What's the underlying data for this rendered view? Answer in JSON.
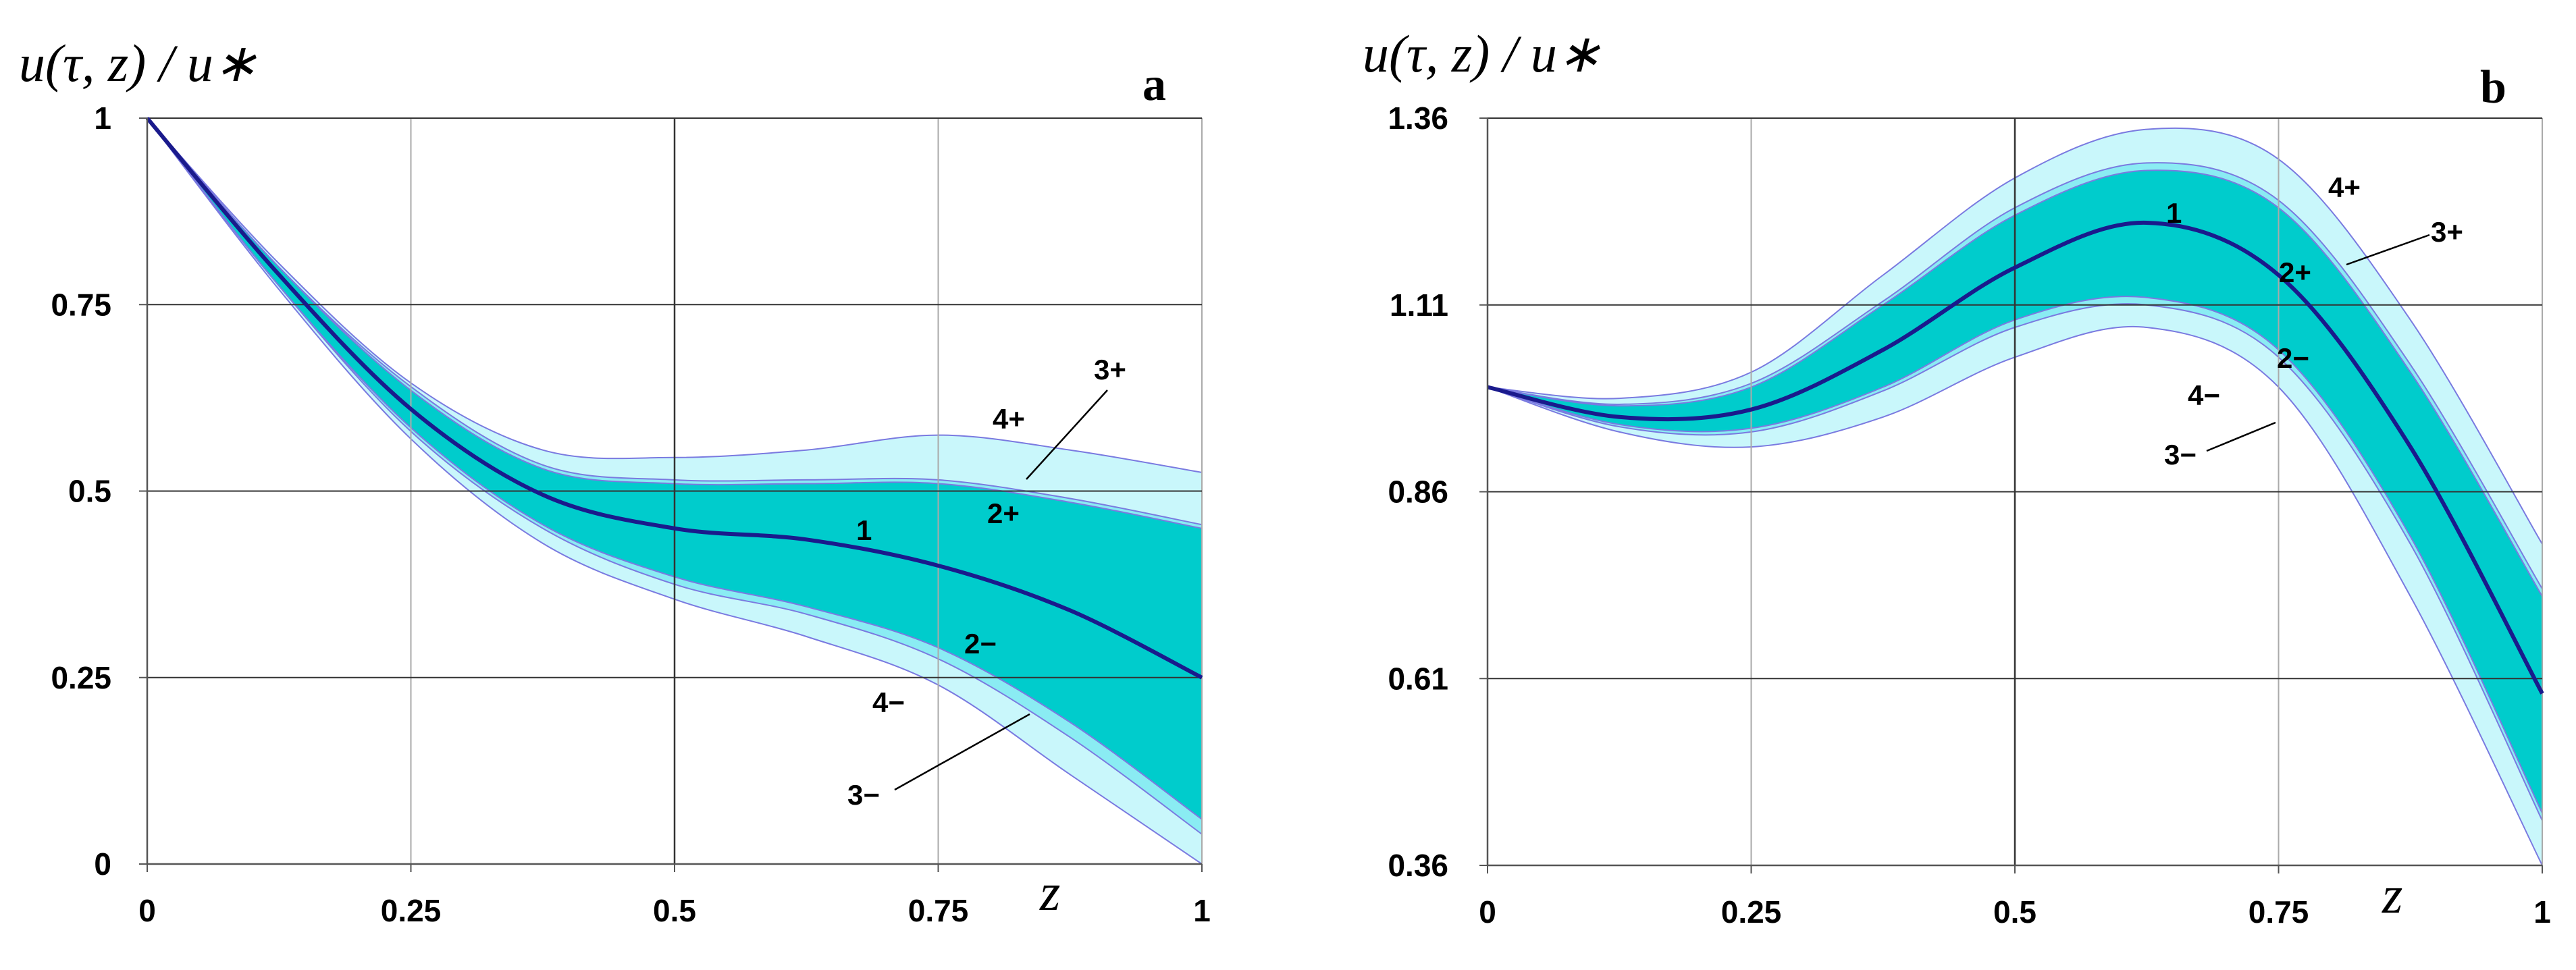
{
  "chart_data": [
    {
      "type": "area",
      "panel_label": "a",
      "ylabel": "u(τ, z) / u∗",
      "xlabel": "z",
      "xlim": [
        0,
        1
      ],
      "ylim": [
        0,
        1
      ],
      "x_ticks": [
        0,
        0.25,
        0.5,
        0.75,
        1
      ],
      "x_tick_labels": [
        "0",
        "0.25",
        "0.5",
        "0.75",
        "1"
      ],
      "y_ticks": [
        0,
        0.25,
        0.5,
        0.75,
        1
      ],
      "y_tick_labels": [
        "0",
        "0.25",
        "0.5",
        "0.75",
        "1"
      ],
      "grid": true,
      "colors": {
        "band4": "#c9f7fb",
        "band3": "#8aecf3",
        "band2": "#00cccc",
        "center": "#1a1a8c",
        "edge": "#7a7ae0"
      },
      "x": [
        0,
        0.125,
        0.25,
        0.375,
        0.5,
        0.625,
        0.75,
        0.875,
        1
      ],
      "series": [
        {
          "name": "1",
          "values": [
            1.0,
            0.79,
            0.61,
            0.495,
            0.45,
            0.435,
            0.4,
            0.34,
            0.25
          ]
        },
        {
          "name": "2+",
          "values": [
            1.0,
            0.8,
            0.635,
            0.53,
            0.51,
            0.51,
            0.51,
            0.485,
            0.45
          ]
        },
        {
          "name": "2−",
          "values": [
            1.0,
            0.775,
            0.585,
            0.455,
            0.385,
            0.345,
            0.29,
            0.19,
            0.06
          ]
        },
        {
          "name": "3+",
          "values": [
            1.0,
            0.8,
            0.64,
            0.535,
            0.515,
            0.515,
            0.515,
            0.49,
            0.455
          ]
        },
        {
          "name": "3−",
          "values": [
            1.0,
            0.775,
            0.58,
            0.45,
            0.375,
            0.335,
            0.275,
            0.17,
            0.04
          ]
        },
        {
          "name": "4+",
          "values": [
            1.0,
            0.805,
            0.645,
            0.555,
            0.545,
            0.555,
            0.575,
            0.555,
            0.525
          ]
        },
        {
          "name": "4−",
          "values": [
            1.0,
            0.77,
            0.57,
            0.43,
            0.355,
            0.305,
            0.24,
            0.12,
            0.0
          ]
        }
      ],
      "annotations": [
        "1",
        "2+",
        "2−",
        "3+",
        "3−",
        "4+",
        "4−"
      ]
    },
    {
      "type": "area",
      "panel_label": "b",
      "ylabel": "u(τ, z) / u∗",
      "xlabel": "z",
      "xlim": [
        0,
        1
      ],
      "ylim": [
        0.36,
        1.36
      ],
      "x_ticks": [
        0,
        0.25,
        0.5,
        0.75,
        1
      ],
      "x_tick_labels": [
        "0",
        "0.25",
        "0.5",
        "0.75",
        "1"
      ],
      "y_ticks": [
        0.36,
        0.61,
        0.86,
        1.11,
        1.36
      ],
      "y_tick_labels": [
        "0.36",
        "0.61",
        "0.86",
        "1.11",
        "1.36"
      ],
      "grid": true,
      "colors": {
        "band4": "#c9f7fb",
        "band3": "#8aecf3",
        "band2": "#00cccc",
        "center": "#1a1a8c",
        "edge": "#7a7ae0"
      },
      "x": [
        0,
        0.125,
        0.25,
        0.375,
        0.5,
        0.625,
        0.75,
        0.875,
        1
      ],
      "series": [
        {
          "name": "1",
          "values": [
            1.0,
            0.96,
            0.97,
            1.05,
            1.16,
            1.22,
            1.15,
            0.92,
            0.59
          ]
        },
        {
          "name": "2+",
          "values": [
            1.0,
            0.975,
            1.0,
            1.11,
            1.23,
            1.29,
            1.24,
            1.02,
            0.72
          ]
        },
        {
          "name": "2−",
          "values": [
            1.0,
            0.95,
            0.945,
            1.0,
            1.09,
            1.12,
            1.05,
            0.8,
            0.43
          ]
        },
        {
          "name": "3+",
          "values": [
            1.0,
            0.977,
            1.005,
            1.115,
            1.24,
            1.3,
            1.25,
            1.03,
            0.73
          ]
        },
        {
          "name": "3−",
          "values": [
            1.0,
            0.947,
            0.94,
            0.995,
            1.08,
            1.11,
            1.04,
            0.79,
            0.42
          ]
        },
        {
          "name": "4+",
          "values": [
            1.0,
            0.985,
            1.02,
            1.15,
            1.28,
            1.345,
            1.305,
            1.09,
            0.79
          ]
        },
        {
          "name": "4−",
          "values": [
            1.0,
            0.94,
            0.92,
            0.96,
            1.04,
            1.08,
            1.0,
            0.72,
            0.36
          ]
        }
      ],
      "annotations": [
        "1",
        "2+",
        "2−",
        "3+",
        "3−",
        "4+",
        "4−"
      ]
    }
  ]
}
